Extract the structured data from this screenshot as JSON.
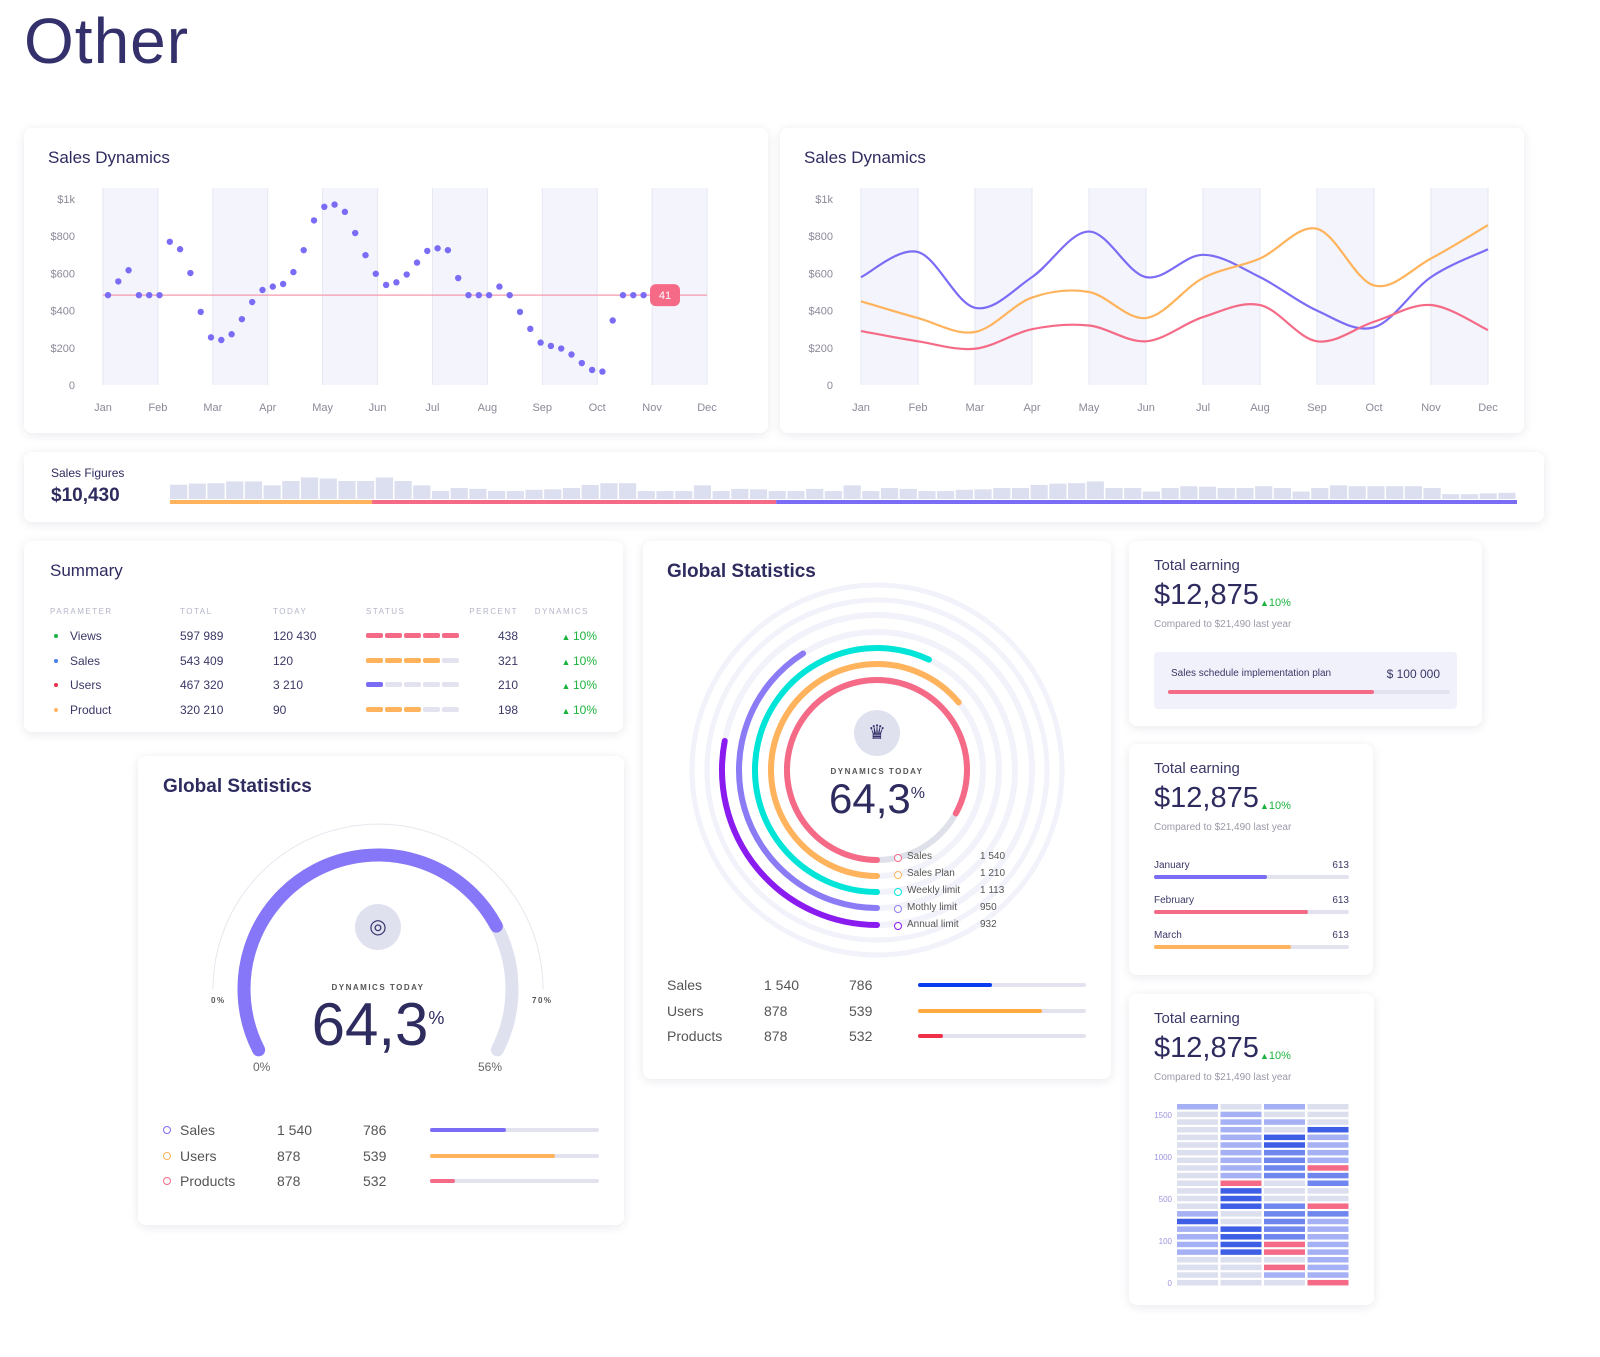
{
  "page": {
    "title": "Other"
  },
  "colors": {
    "navy": "#2e2b5f",
    "purple": "#7b6cf6",
    "orange": "#ffb35c",
    "red": "#f56b87",
    "cyan": "#00e5d8",
    "violet": "#8b1cf0",
    "blue": "#0a3cf0",
    "green": "#1cb33e",
    "band": "#f3f4fc"
  },
  "chart_data": [
    {
      "type": "scatter",
      "title": "Sales Dynamics",
      "categories": [
        "Jan",
        "Feb",
        "Mar",
        "Apr",
        "May",
        "Jun",
        "Jul",
        "Aug",
        "Sep",
        "Oct",
        "Nov",
        "Dec"
      ],
      "yticks": [
        "0",
        "$200",
        "$400",
        "$600",
        "$800",
        "$1k"
      ],
      "ylim": [
        0,
        1000
      ],
      "values": [
        483,
        557,
        617,
        483,
        483,
        483,
        770,
        730,
        602,
        393,
        256,
        242,
        273,
        354,
        446,
        511,
        529,
        543,
        607,
        725,
        885,
        958,
        970,
        931,
        817,
        698,
        598,
        538,
        552,
        594,
        658,
        721,
        735,
        725,
        575,
        483,
        483,
        483,
        529,
        483,
        393,
        302,
        228,
        210,
        196,
        164,
        118,
        81,
        72,
        347,
        483,
        483,
        483
      ],
      "reference_line": {
        "value": 483,
        "label": "41"
      }
    },
    {
      "type": "line",
      "title": "Sales Dynamics",
      "categories": [
        "Jan",
        "Feb",
        "Mar",
        "Apr",
        "May",
        "Jun",
        "Jul",
        "Aug",
        "Sep",
        "Oct",
        "Nov",
        "Dec"
      ],
      "yticks": [
        "0",
        "$200",
        "$400",
        "$600",
        "$800",
        "$1k"
      ],
      "ylim": [
        0,
        1000
      ],
      "series": [
        {
          "color": "#7b6cf6",
          "values": [
            580,
            715,
            415,
            580,
            825,
            580,
            700,
            580,
            400,
            310,
            580,
            730
          ]
        },
        {
          "color": "#ffb35c",
          "values": [
            450,
            360,
            285,
            470,
            500,
            360,
            575,
            680,
            840,
            535,
            680,
            860
          ]
        },
        {
          "color": "#f56b87",
          "values": [
            290,
            235,
            195,
            300,
            320,
            235,
            365,
            430,
            235,
            340,
            430,
            295
          ]
        }
      ]
    },
    {
      "type": "bar",
      "title": "Sales Figures",
      "values": [
        65,
        70,
        72,
        80,
        80,
        62,
        82,
        98,
        93,
        82,
        82,
        98,
        82,
        62,
        36,
        50,
        46,
        36,
        36,
        42,
        44,
        50,
        64,
        72,
        72,
        36,
        36,
        36,
        62,
        36,
        46,
        44,
        36,
        36,
        46,
        36,
        62,
        36,
        50,
        46,
        36,
        36,
        42,
        44,
        50,
        50,
        64,
        70,
        72,
        80,
        50,
        50,
        34,
        50,
        58,
        56,
        50,
        50,
        58,
        50,
        34,
        50,
        62,
        58,
        58,
        58,
        58,
        50,
        22,
        22,
        26,
        28
      ],
      "progress_segments": [
        {
          "color": "#ffb35c",
          "share": 15
        },
        {
          "color": "#f56b87",
          "share": 30
        },
        {
          "color": "#7b6cf6",
          "share": 55
        }
      ]
    },
    {
      "type": "heatmap",
      "yticks": [
        "1500",
        "1000",
        "500",
        "100",
        "0"
      ],
      "levels": [
        [
          1,
          0,
          1,
          0
        ],
        [
          0,
          1,
          0,
          0
        ],
        [
          0,
          1,
          1,
          0
        ],
        [
          0,
          1,
          0,
          3
        ],
        [
          0,
          1,
          3,
          1
        ],
        [
          0,
          1,
          3,
          1
        ],
        [
          0,
          1,
          2,
          1
        ],
        [
          0,
          1,
          2,
          1
        ],
        [
          0,
          1,
          2,
          4
        ],
        [
          0,
          1,
          2,
          2
        ],
        [
          0,
          4,
          0,
          2
        ],
        [
          0,
          3,
          0,
          0
        ],
        [
          0,
          3,
          0,
          0
        ],
        [
          0,
          3,
          2,
          4
        ],
        [
          1,
          0,
          2,
          2
        ],
        [
          3,
          0,
          2,
          1
        ],
        [
          1,
          3,
          2,
          1
        ],
        [
          1,
          3,
          2,
          1
        ],
        [
          1,
          3,
          4,
          1
        ],
        [
          1,
          3,
          4,
          1
        ],
        [
          0,
          0,
          0,
          1
        ],
        [
          0,
          0,
          4,
          1
        ],
        [
          0,
          0,
          1,
          1
        ],
        [
          0,
          0,
          0,
          4
        ]
      ],
      "level_colors": [
        "#dcdfee",
        "#a5b1f4",
        "#6f86ee",
        "#3f5ee6",
        "#f56b87"
      ]
    }
  ],
  "sales_figures": {
    "label": "Sales Figures",
    "value": "$10,430"
  },
  "summary": {
    "title": "Summary",
    "headers": [
      "PARAMETER",
      "TOTAL",
      "TODAY",
      "STATUS",
      "PERCENT",
      "DYNAMICS"
    ],
    "rows": [
      {
        "name": "Views",
        "total": "597 989",
        "today": "120 430",
        "status": 5,
        "status_color": "#f56b87",
        "bullet": "#1cb33e",
        "percent": "438",
        "dynamics": "10%"
      },
      {
        "name": "Sales",
        "total": "543 409",
        "today": "120",
        "status": 4,
        "status_color": "#ffb35c",
        "bullet": "#4a7cf0",
        "percent": "321",
        "dynamics": "10%"
      },
      {
        "name": "Users",
        "total": "467 320",
        "today": "3 210",
        "status": 1,
        "status_color": "#7b6cf6",
        "bullet": "#f0304a",
        "percent": "210",
        "dynamics": "10%"
      },
      {
        "name": "Product",
        "total": "320 210",
        "today": "90",
        "status": 3,
        "status_color": "#ffb35c",
        "bullet": "#ffb35c",
        "percent": "198",
        "dynamics": "10%"
      }
    ]
  },
  "global_rings": {
    "title": "Global Statistics",
    "caption": "DYNAMICS TODAY",
    "value": "64,3",
    "unit": "%",
    "icon": "crown-icon",
    "rings": [
      {
        "label": "Sales",
        "value": "1 540",
        "color": "#f56b87",
        "fill": 0.83
      },
      {
        "label": "Sales Plan",
        "value": "1 210",
        "color": "#ffb35c",
        "fill": 0.64
      },
      {
        "label": "Weekly limit",
        "value": "1 113",
        "color": "#00e5d8",
        "fill": 0.57
      },
      {
        "label": "Mothly limit",
        "value": "950",
        "color": "#8b7cf6",
        "fill": 0.41
      },
      {
        "label": "Annual limit",
        "value": "932",
        "color": "#8b1cf0",
        "fill": 0.28
      }
    ],
    "rows": [
      {
        "label": "Sales",
        "a": "1 540",
        "b": "786",
        "color": "#0a3cf0",
        "fill": 0.44
      },
      {
        "label": "Users",
        "a": "878",
        "b": "539",
        "color": "#ffa940",
        "fill": 0.74
      },
      {
        "label": "Products",
        "a": "878",
        "b": "532",
        "color": "#f03048",
        "fill": 0.15
      }
    ]
  },
  "global_gauge": {
    "title": "Global Statistics",
    "caption": "DYNAMICS TODAY",
    "value": "64,3",
    "unit": "%",
    "icon": "eye-icon",
    "fill": 0.765,
    "scale_min": "0%",
    "scale_max": "70%",
    "inner_min": "0%",
    "inner_max": "56%",
    "rows": [
      {
        "label": "Sales",
        "a": "1 540",
        "b": "786",
        "color": "#7b6cf6",
        "fill": 0.45
      },
      {
        "label": "Users",
        "a": "878",
        "b": "539",
        "color": "#ffb35c",
        "fill": 0.74
      },
      {
        "label": "Products",
        "a": "878",
        "b": "532",
        "color": "#f56b87",
        "fill": 0.15
      }
    ]
  },
  "earning": [
    {
      "title": "Total earning",
      "amount": "$12,875",
      "change": "10%",
      "compare": "Compared to $21,490 last year",
      "plan_label": "Sales schedule implementation plan",
      "plan_value": "$ 100 000",
      "plan_fill": 0.73
    },
    {
      "title": "Total earning",
      "amount": "$12,875",
      "change": "10%",
      "compare": "Compared to $21,490 last year",
      "months": [
        {
          "label": "January",
          "value": "613",
          "color": "#7b6cf6",
          "fill": 0.58
        },
        {
          "label": "February",
          "value": "613",
          "color": "#f56b87",
          "fill": 0.79
        },
        {
          "label": "March",
          "value": "613",
          "color": "#ffb35c",
          "fill": 0.7
        }
      ]
    },
    {
      "title": "Total earning",
      "amount": "$12,875",
      "change": "10%",
      "compare": "Compared to $21,490 last year"
    }
  ]
}
